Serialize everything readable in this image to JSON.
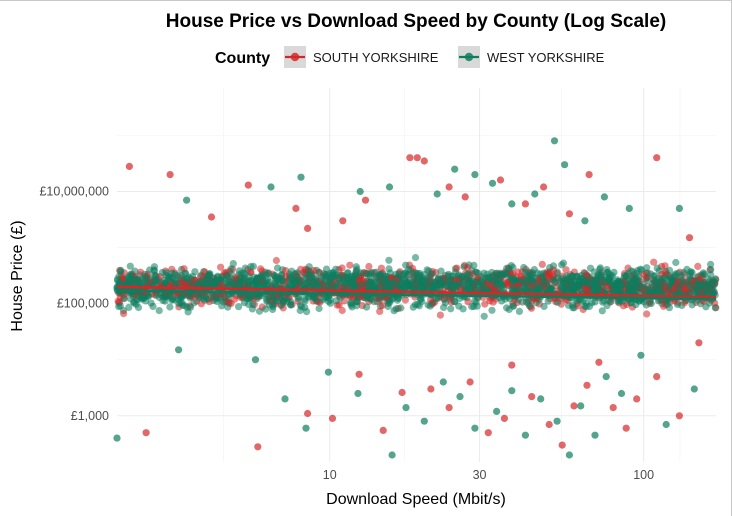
{
  "chart_data": {
    "type": "scatter",
    "title": "House Price vs Download Speed by County (Log Scale)",
    "xlabel": "Download Speed (Mbit/s)",
    "ylabel": "House Price (£)",
    "x_scale": "log",
    "y_scale": "log",
    "xlim": [
      2.1,
      170
    ],
    "ylim": [
      150,
      700000000
    ],
    "x_ticks": [
      10,
      30,
      100
    ],
    "x_tick_labels": [
      "10",
      "30",
      "100"
    ],
    "y_ticks": [
      1000,
      100000,
      10000000
    ],
    "y_tick_labels": [
      "£1,000",
      "£100,000",
      "£10,000,000"
    ],
    "grid": true,
    "legend": {
      "title": "County",
      "position": "top",
      "entries": [
        "SOUTH YORKSHIRE",
        "WEST YORKSHIRE"
      ]
    },
    "colors": {
      "SOUTH YORKSHIRE": "#d62728",
      "WEST YORKSHIRE": "#0d7e5e"
    },
    "series": [
      {
        "name": "SOUTH YORKSHIRE",
        "trend": {
          "x": [
            2.1,
            170
          ],
          "y": [
            200000,
            130000
          ]
        },
        "core": {
          "x_range": [
            2.1,
            170
          ],
          "y_range": [
            40000,
            1000000
          ]
        },
        "points": [
          {
            "x": 2.3,
            "y": 28000000
          },
          {
            "x": 3.1,
            "y": 20000000
          },
          {
            "x": 4.2,
            "y": 3500000
          },
          {
            "x": 5.5,
            "y": 13000000
          },
          {
            "x": 7.8,
            "y": 5000000
          },
          {
            "x": 8.5,
            "y": 2200000
          },
          {
            "x": 11,
            "y": 3000000
          },
          {
            "x": 13,
            "y": 7000000
          },
          {
            "x": 18,
            "y": 40000000
          },
          {
            "x": 19,
            "y": 40000000
          },
          {
            "x": 20,
            "y": 35000000
          },
          {
            "x": 24,
            "y": 12000000
          },
          {
            "x": 27,
            "y": 8000000
          },
          {
            "x": 35,
            "y": 16000000
          },
          {
            "x": 42,
            "y": 6000000
          },
          {
            "x": 48,
            "y": 12000000
          },
          {
            "x": 58,
            "y": 4000000
          },
          {
            "x": 67,
            "y": 20000000
          },
          {
            "x": 110,
            "y": 40000000
          },
          {
            "x": 140,
            "y": 1500000
          },
          {
            "x": 2.6,
            "y": 500
          },
          {
            "x": 5.9,
            "y": 280
          },
          {
            "x": 8.5,
            "y": 1100
          },
          {
            "x": 10.2,
            "y": 900
          },
          {
            "x": 12.4,
            "y": 5500
          },
          {
            "x": 14.8,
            "y": 550
          },
          {
            "x": 17,
            "y": 2600
          },
          {
            "x": 21,
            "y": 3000
          },
          {
            "x": 24,
            "y": 1400
          },
          {
            "x": 28,
            "y": 4000
          },
          {
            "x": 32,
            "y": 500
          },
          {
            "x": 36,
            "y": 900
          },
          {
            "x": 38,
            "y": 8000
          },
          {
            "x": 44,
            "y": 2200
          },
          {
            "x": 50,
            "y": 700
          },
          {
            "x": 55,
            "y": 300
          },
          {
            "x": 60,
            "y": 1500
          },
          {
            "x": 66,
            "y": 3500
          },
          {
            "x": 72,
            "y": 9000
          },
          {
            "x": 80,
            "y": 1400
          },
          {
            "x": 88,
            "y": 600
          },
          {
            "x": 95,
            "y": 2000
          },
          {
            "x": 110,
            "y": 5000
          },
          {
            "x": 130,
            "y": 1000
          },
          {
            "x": 150,
            "y": 20000
          }
        ]
      },
      {
        "name": "WEST YORKSHIRE",
        "trend": {
          "x": [
            2.1,
            170
          ],
          "y": [
            170000,
            120000
          ]
        },
        "core": {
          "x_range": [
            2.1,
            170
          ],
          "y_range": [
            40000,
            1000000
          ]
        },
        "points": [
          {
            "x": 3.5,
            "y": 7000000
          },
          {
            "x": 6.5,
            "y": 12000000
          },
          {
            "x": 8.1,
            "y": 18000000
          },
          {
            "x": 12.5,
            "y": 10000000
          },
          {
            "x": 15.5,
            "y": 12000000
          },
          {
            "x": 22,
            "y": 9000000
          },
          {
            "x": 25,
            "y": 25000000
          },
          {
            "x": 29,
            "y": 20000000
          },
          {
            "x": 33,
            "y": 14000000
          },
          {
            "x": 38,
            "y": 6000000
          },
          {
            "x": 45,
            "y": 9000000
          },
          {
            "x": 52,
            "y": 80000000
          },
          {
            "x": 56,
            "y": 30000000
          },
          {
            "x": 65,
            "y": 3000000
          },
          {
            "x": 75,
            "y": 8000000
          },
          {
            "x": 90,
            "y": 5000000
          },
          {
            "x": 130,
            "y": 5000000
          },
          {
            "x": 2.1,
            "y": 400
          },
          {
            "x": 3.3,
            "y": 15000
          },
          {
            "x": 5.8,
            "y": 10000
          },
          {
            "x": 7.2,
            "y": 2000
          },
          {
            "x": 8.4,
            "y": 600
          },
          {
            "x": 9.9,
            "y": 6000
          },
          {
            "x": 12.3,
            "y": 2500
          },
          {
            "x": 15.8,
            "y": 200
          },
          {
            "x": 17.5,
            "y": 1400
          },
          {
            "x": 20,
            "y": 800
          },
          {
            "x": 23,
            "y": 4000
          },
          {
            "x": 26,
            "y": 2200
          },
          {
            "x": 29,
            "y": 600
          },
          {
            "x": 34,
            "y": 1200
          },
          {
            "x": 38,
            "y": 2800
          },
          {
            "x": 42,
            "y": 450
          },
          {
            "x": 47,
            "y": 2000
          },
          {
            "x": 53,
            "y": 800
          },
          {
            "x": 58,
            "y": 200
          },
          {
            "x": 63,
            "y": 1500
          },
          {
            "x": 70,
            "y": 450
          },
          {
            "x": 76,
            "y": 5000
          },
          {
            "x": 85,
            "y": 2500
          },
          {
            "x": 98,
            "y": 12000
          },
          {
            "x": 118,
            "y": 700
          },
          {
            "x": 145,
            "y": 3000
          }
        ]
      }
    ]
  }
}
